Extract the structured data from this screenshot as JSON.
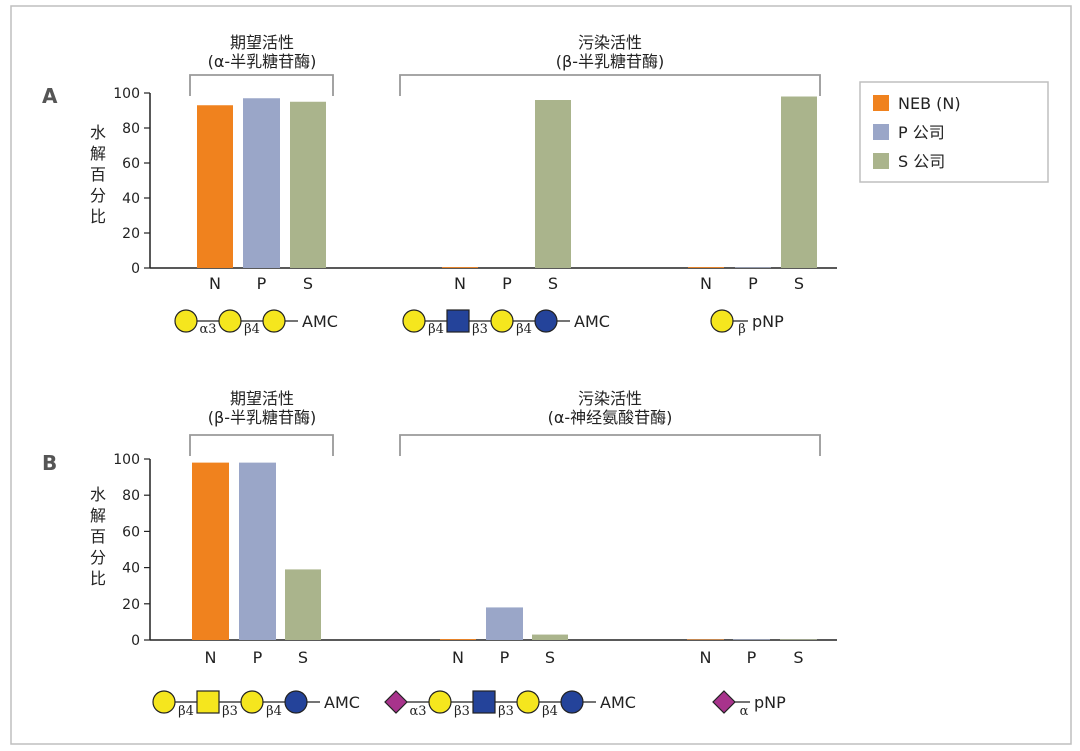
{
  "colors": {
    "N": "#f0821e",
    "P": "#9aa6c8",
    "S": "#aab48c",
    "gal": "#f5e61e",
    "glcnac": "#24439a",
    "glc": "#24439a",
    "galnac": "#f5e61e",
    "neu5ac": "#a8338c",
    "frame": "#bfbfbf",
    "bracket": "#999999",
    "axis": "#222222"
  },
  "legend": {
    "items": [
      {
        "key": "N",
        "label": "NEB (N)"
      },
      {
        "key": "P",
        "label": "P 公司"
      },
      {
        "key": "S",
        "label": "S 公司"
      }
    ]
  },
  "chart_data": [
    {
      "type": "bar",
      "panel": "A",
      "ylabel": [
        "水",
        "解",
        "百",
        "分",
        "比"
      ],
      "ylim": [
        0,
        100
      ],
      "yticks": [
        "0",
        "20",
        "40",
        "60",
        "80",
        "100"
      ],
      "brackets": [
        {
          "title": "期望活性",
          "subtitle": "(α-半乳糖苷酶)"
        },
        {
          "title": "污染活性",
          "subtitle": "(β-半乳糖苷酶)"
        }
      ],
      "groups": [
        {
          "categories": [
            "N",
            "P",
            "S"
          ],
          "values": [
            93,
            97,
            95
          ],
          "substrate": {
            "linkages": [
              "α3",
              "β4"
            ],
            "reporter": "AMC"
          }
        },
        {
          "categories": [
            "N",
            "P",
            "S"
          ],
          "values": [
            0.5,
            0,
            96
          ],
          "substrate": {
            "linkages": [
              "β4",
              "β3",
              "β4"
            ],
            "reporter": "AMC"
          }
        },
        {
          "categories": [
            "N",
            "P",
            "S"
          ],
          "values": [
            0.5,
            0.3,
            98
          ],
          "substrate": {
            "linkages": [
              "β"
            ],
            "reporter": "pNP"
          }
        }
      ]
    },
    {
      "type": "bar",
      "panel": "B",
      "ylabel": [
        "水",
        "解",
        "百",
        "分",
        "比"
      ],
      "ylim": [
        0,
        100
      ],
      "yticks": [
        "0",
        "20",
        "40",
        "60",
        "80",
        "100"
      ],
      "brackets": [
        {
          "title": "期望活性",
          "subtitle": "(β-半乳糖苷酶)"
        },
        {
          "title": "污染活性",
          "subtitle": "(α-神经氨酸苷酶)"
        }
      ],
      "groups": [
        {
          "categories": [
            "N",
            "P",
            "S"
          ],
          "values": [
            98,
            98,
            39
          ],
          "substrate": {
            "linkages": [
              "β4",
              "β3",
              "β4"
            ],
            "reporter": "AMC"
          }
        },
        {
          "categories": [
            "N",
            "P",
            "S"
          ],
          "values": [
            0.5,
            18,
            3
          ],
          "substrate": {
            "linkages": [
              "α3",
              "β3",
              "β3",
              "β4"
            ],
            "reporter": "AMC"
          }
        },
        {
          "categories": [
            "N",
            "P",
            "S"
          ],
          "values": [
            0.3,
            0.3,
            0.3
          ],
          "substrate": {
            "linkages": [
              "α"
            ],
            "reporter": "pNP"
          }
        }
      ]
    }
  ]
}
